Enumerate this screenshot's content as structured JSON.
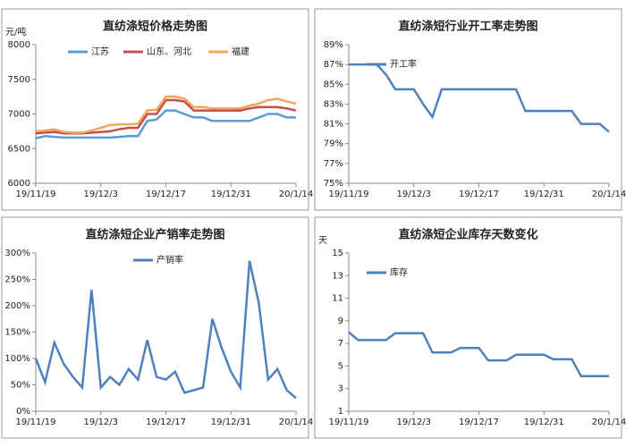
{
  "chart_data": [
    {
      "type": "line",
      "title": "直纺涤短价格走势图",
      "y_label": "元/吨",
      "categories": [
        "19/11/19",
        null,
        null,
        null,
        null,
        null,
        null,
        "19/12/3",
        null,
        null,
        null,
        null,
        null,
        null,
        "19/12/17",
        null,
        null,
        null,
        null,
        null,
        null,
        "19/12/31",
        null,
        null,
        null,
        null,
        null,
        null,
        "20/1/14"
      ],
      "series": [
        {
          "name": "江苏",
          "color": "#5b9bd5",
          "values": [
            6650,
            6680,
            6670,
            6660,
            6660,
            6660,
            6660,
            6660,
            6660,
            6670,
            6680,
            6680,
            6900,
            6920,
            7050,
            7050,
            7000,
            6950,
            6950,
            6900,
            6900,
            6900,
            6900,
            6900,
            6950,
            7000,
            7000,
            6950,
            6950
          ]
        },
        {
          "name": "山东、河北",
          "color": "#c0504d",
          "values": [
            6720,
            6730,
            6740,
            6720,
            6720,
            6720,
            6730,
            6740,
            6750,
            6780,
            6800,
            6800,
            7000,
            7000,
            7200,
            7200,
            7180,
            7050,
            7050,
            7050,
            7050,
            7050,
            7050,
            7080,
            7100,
            7100,
            7100,
            7080,
            7050
          ]
        },
        {
          "name": "福建",
          "color": "#f2a65a",
          "values": [
            6750,
            6760,
            6780,
            6740,
            6730,
            6730,
            6760,
            6800,
            6840,
            6850,
            6850,
            6860,
            7050,
            7060,
            7250,
            7250,
            7220,
            7100,
            7100,
            7080,
            7080,
            7080,
            7080,
            7120,
            7150,
            7200,
            7220,
            7180,
            7150
          ]
        }
      ],
      "ylim": [
        6000,
        8000
      ],
      "yticks": [
        6000,
        6500,
        7000,
        7500,
        8000
      ],
      "legend": "top",
      "grid": false
    },
    {
      "type": "line",
      "title": "直纺涤短行业开工率走势图",
      "categories": [
        "19/11/19",
        null,
        null,
        null,
        null,
        null,
        null,
        "19/12/3",
        null,
        null,
        null,
        null,
        null,
        null,
        "19/12/17",
        null,
        null,
        null,
        null,
        null,
        null,
        "19/12/31",
        null,
        null,
        null,
        null,
        null,
        null,
        "20/1/14"
      ],
      "series": [
        {
          "name": "开工率",
          "color": "#4f81bd",
          "values": [
            87,
            87,
            87,
            87,
            86,
            84.5,
            84.5,
            84.5,
            83,
            81.7,
            84.5,
            84.5,
            84.5,
            84.5,
            84.5,
            84.5,
            84.5,
            84.5,
            84.5,
            82.3,
            82.3,
            82.3,
            82.3,
            82.3,
            82.3,
            81,
            81,
            81,
            80.2
          ]
        }
      ],
      "ylim": [
        75,
        89
      ],
      "yticks": [
        {
          "value": 75,
          "label": "75%"
        },
        {
          "value": 77,
          "label": "77%"
        },
        {
          "value": 79,
          "label": "79%"
        },
        {
          "value": 81,
          "label": "81%"
        },
        {
          "value": 83,
          "label": "83%"
        },
        {
          "value": 85,
          "label": "85%"
        },
        {
          "value": 87,
          "label": "87%"
        },
        {
          "value": 89,
          "label": "89%"
        }
      ],
      "legend": "top-left",
      "grid": false
    },
    {
      "type": "line",
      "title": "直纺涤短企业产销率走势图",
      "categories": [
        "19/11/19",
        null,
        null,
        null,
        null,
        null,
        null,
        "19/12/3",
        null,
        null,
        null,
        null,
        null,
        null,
        "19/12/17",
        null,
        null,
        null,
        null,
        null,
        null,
        "19/12/31",
        null,
        null,
        null,
        null,
        null,
        null,
        "20/1/14"
      ],
      "series": [
        {
          "name": "产销率",
          "color": "#4f81bd",
          "values": [
            100,
            55,
            130,
            90,
            65,
            45,
            230,
            45,
            65,
            50,
            80,
            60,
            135,
            65,
            60,
            75,
            35,
            40,
            45,
            175,
            120,
            75,
            45,
            285,
            205,
            60,
            80,
            40,
            25
          ]
        }
      ],
      "ylim": [
        0,
        300
      ],
      "yticks": [
        {
          "value": 0,
          "label": "0%"
        },
        {
          "value": 50,
          "label": "50%"
        },
        {
          "value": 100,
          "label": "100%"
        },
        {
          "value": 150,
          "label": "150%"
        },
        {
          "value": 200,
          "label": "200%"
        },
        {
          "value": 250,
          "label": "250%"
        },
        {
          "value": 300,
          "label": "300%"
        }
      ],
      "legend": "top",
      "grid": false
    },
    {
      "type": "line",
      "title": "直纺涤短企业库存天数变化",
      "y_label": "天",
      "categories": [
        "19/11/19",
        null,
        null,
        null,
        null,
        null,
        null,
        "19/12/3",
        null,
        null,
        null,
        null,
        null,
        null,
        "19/12/17",
        null,
        null,
        null,
        null,
        null,
        null,
        "19/12/31",
        null,
        null,
        null,
        null,
        null,
        null,
        "20/1/14"
      ],
      "series": [
        {
          "name": "库存",
          "color": "#4f81bd",
          "values": [
            8,
            7.3,
            7.3,
            7.3,
            7.3,
            7.9,
            7.9,
            7.9,
            7.9,
            6.2,
            6.2,
            6.2,
            6.6,
            6.6,
            6.6,
            5.5,
            5.5,
            5.5,
            6,
            6,
            6,
            6,
            5.6,
            5.6,
            5.6,
            4.1,
            4.1,
            4.1,
            4.1
          ]
        }
      ],
      "ylim": [
        1,
        15
      ],
      "yticks": [
        1,
        3,
        5,
        7,
        9,
        11,
        13,
        15
      ],
      "legend": "top-left",
      "grid": false
    }
  ]
}
